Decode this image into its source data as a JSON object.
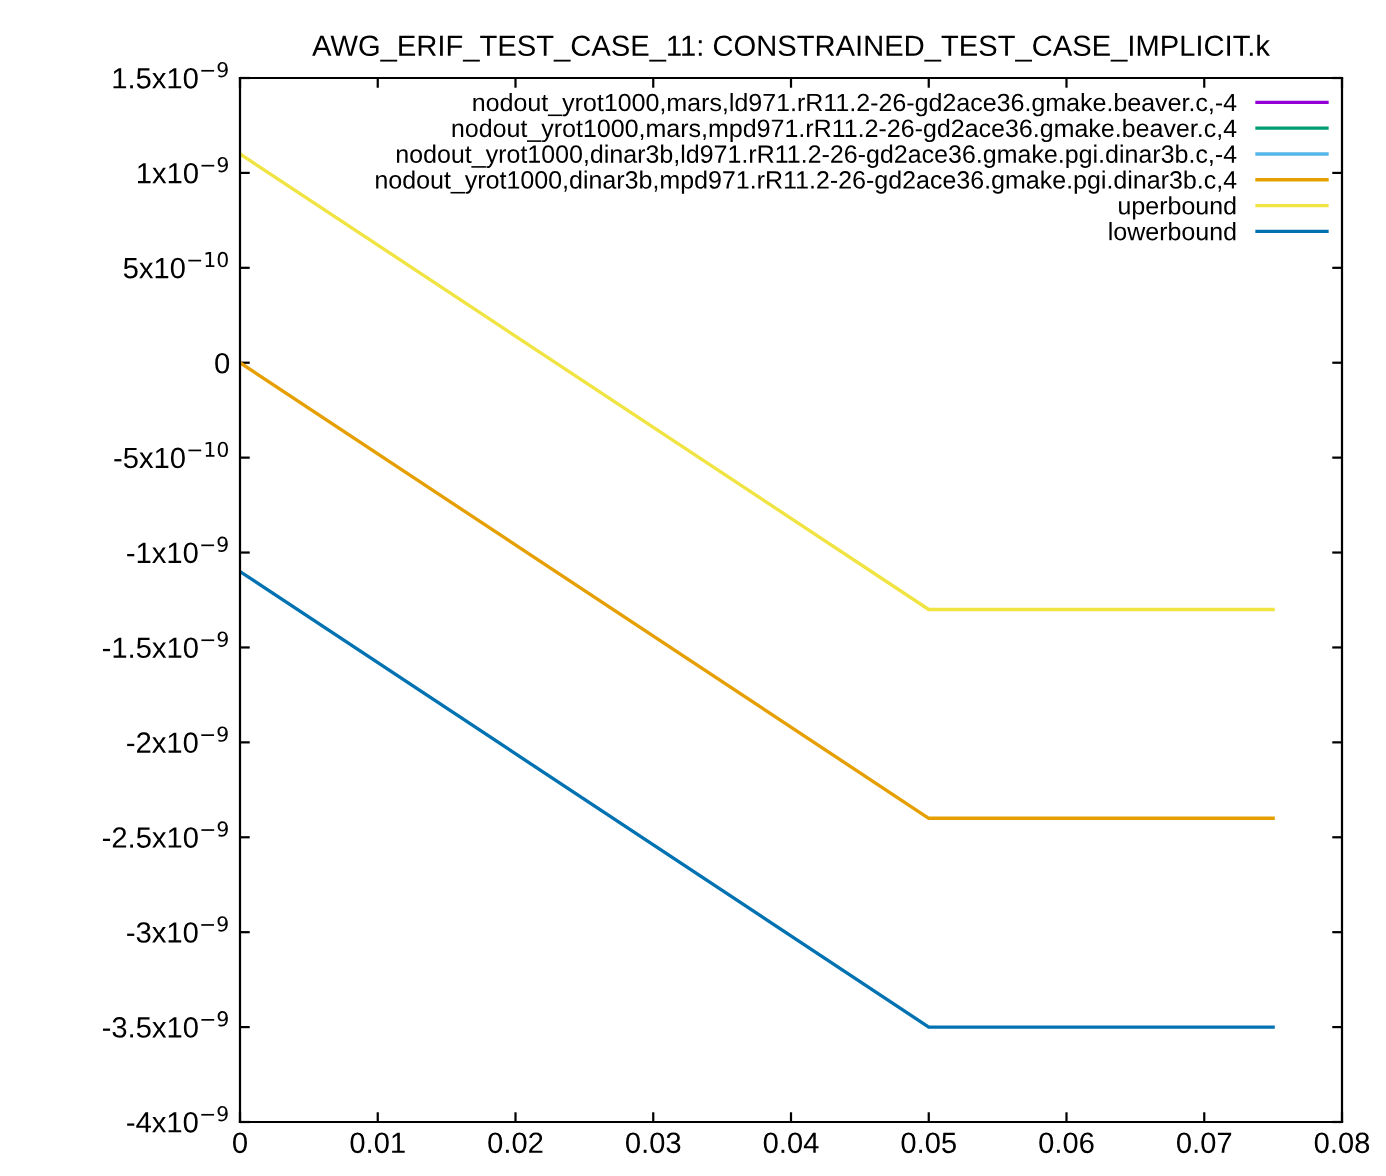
{
  "chart_data": {
    "type": "line",
    "title": "AWG_ERIF_TEST_CASE_11: CONSTRAINED_TEST_CASE_IMPLICIT.k",
    "x": [
      0,
      0.05,
      0.075
    ],
    "series": [
      {
        "name": "nodout_yrot1000,mars,ld971.rR11.2-26-gd2ace36.gmake.beaver.c,-4",
        "color": "#9400d3",
        "values": [
          null,
          null,
          null
        ]
      },
      {
        "name": "nodout_yrot1000,mars,mpd971.rR11.2-26-gd2ace36.gmake.beaver.c,4",
        "color": "#009e73",
        "values": [
          null,
          null,
          null
        ]
      },
      {
        "name": "nodout_yrot1000,dinar3b,ld971.rR11.2-26-gd2ace36.gmake.pgi.dinar3b.c,-4",
        "color": "#56b4e9",
        "values": [
          null,
          null,
          null
        ]
      },
      {
        "name": "nodout_yrot1000,dinar3b,mpd971.rR11.2-26-gd2ace36.gmake.pgi.dinar3b.c,4",
        "color": "#e69f00",
        "values": [
          0,
          -2.4e-09,
          -2.4e-09
        ]
      },
      {
        "name": "uperbound",
        "color": "#f0e442",
        "values": [
          1.1e-09,
          -1.3e-09,
          -1.3e-09
        ]
      },
      {
        "name": "lowerbound",
        "color": "#0072b2",
        "values": [
          -1.1e-09,
          -3.5e-09,
          -3.5e-09
        ]
      }
    ],
    "xlim": [
      0,
      0.08
    ],
    "xticks": [
      0,
      0.01,
      0.02,
      0.03,
      0.04,
      0.05,
      0.06,
      0.07,
      0.08
    ],
    "ylim": [
      -4e-09,
      1.5e-09
    ],
    "yticks": [
      {
        "value": -4e-09,
        "label": "-4x10$^{−9}$"
      },
      {
        "value": -3.5e-09,
        "label": "-3.5x10$^{−9}$"
      },
      {
        "value": -3e-09,
        "label": "-3x10$^{−9}$"
      },
      {
        "value": -2.5e-09,
        "label": "-2.5x10$^{−9}$"
      },
      {
        "value": -2e-09,
        "label": "-2x10$^{−9}$"
      },
      {
        "value": -1.5e-09,
        "label": "-1.5x10$^{−9}$"
      },
      {
        "value": -1e-09,
        "label": "-1x10$^{−9}$"
      },
      {
        "value": -5e-10,
        "label": "-5x10$^{−10}$"
      },
      {
        "value": 0,
        "label": "0"
      },
      {
        "value": 5e-10,
        "label": "5x10$^{−10}$"
      },
      {
        "value": 1e-09,
        "label": "1x10$^{−9}$"
      },
      {
        "value": 1.5e-09,
        "label": "1.5x10$^{−9}$"
      }
    ],
    "grid": false,
    "legend": "top right",
    "marker": "none",
    "line_style": "solid"
  }
}
